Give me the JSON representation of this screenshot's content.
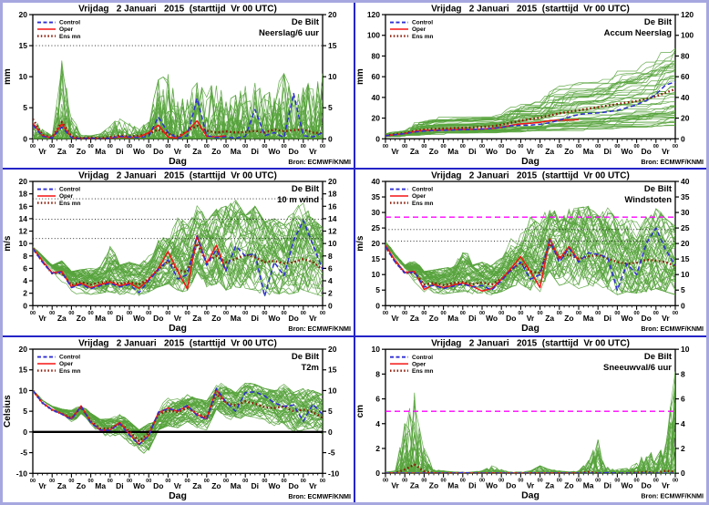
{
  "shared": {
    "title": "Vrijdag   2 Januari   2015  (starttijd  Vr 00 UTC)",
    "station": "De Bilt",
    "xlabel": "Dag",
    "bron_label": "Bron: ECMWF/KNMI",
    "bron_color": "#1212cc",
    "hour_label": "00",
    "day_labels": [
      "Vr",
      "Za",
      "Zo",
      "Ma",
      "Di",
      "Wo",
      "Do",
      "Vr",
      "Za",
      "Zo",
      "Ma",
      "Di",
      "Wo",
      "Do",
      "Vr"
    ],
    "x_days": 15,
    "step_days": 0.5,
    "legend": [
      {
        "label": "Control",
        "key": "control",
        "style": "dashed",
        "color": "#2e2ed2"
      },
      {
        "label": "Oper",
        "key": "oper",
        "style": "solid",
        "color": "#f51414"
      },
      {
        "label": "Ens mn",
        "key": "ens_mean",
        "style": "dotted",
        "color": "#8b1a07"
      }
    ],
    "colors": {
      "control": "#2e2ed2",
      "oper": "#f51414",
      "ens_mean": "#8b1a07",
      "ensemble": "#57a33c",
      "ref_dotted": "#1a1a1a",
      "ref_magenta": "#ff00ff",
      "zero_line": "#000000",
      "frame": "#000000"
    }
  },
  "chart_data": [
    {
      "type": "line",
      "variable": "Neerslag/6 uur",
      "ylabel": "mm",
      "ylim": [
        0,
        20
      ],
      "ytick_step": 5,
      "ref_lines": [
        {
          "y": 15,
          "kind": "dotted"
        }
      ],
      "ensemble": {
        "count": 50,
        "mode": "spike",
        "seed": 11
      },
      "series": {
        "control": [
          2.2,
          0.4,
          0.1,
          1.9,
          0.2,
          0.0,
          0.1,
          0.0,
          0.1,
          0.4,
          0.3,
          0.2,
          0.4,
          3.5,
          1.0,
          0.1,
          0.5,
          6.5,
          0.5,
          0.2,
          0.3,
          0.1,
          0.4,
          4.7,
          0.5,
          1.0,
          0.2,
          7.3,
          0.5,
          0.3,
          1.0
        ],
        "oper": [
          2.5,
          0.5,
          0.1,
          2.4,
          0.2,
          0.0,
          0.1,
          0.0,
          0.1,
          0.3,
          0.2,
          0.3,
          1.0,
          2.2,
          0.3,
          0.1,
          1.2,
          2.9,
          0.4,
          0.3,
          0.5
        ],
        "ens_mean": [
          3.2,
          0.6,
          0.2,
          2.7,
          0.4,
          0.1,
          0.2,
          0.1,
          0.3,
          0.5,
          0.4,
          0.5,
          0.8,
          1.5,
          0.8,
          0.4,
          1.2,
          2.1,
          1.3,
          1.0,
          1.2,
          1.0,
          1.1,
          1.3,
          1.0,
          1.5,
          1.2,
          1.4,
          1.5,
          1.0,
          0.9
        ]
      },
      "envelope": {
        "min": [
          0,
          0,
          0,
          0,
          0,
          0,
          0,
          0,
          0,
          0,
          0,
          0,
          0,
          0,
          0,
          0,
          0,
          0,
          0,
          0,
          0,
          0,
          0,
          0,
          0,
          0,
          0,
          0,
          0,
          0,
          0
        ],
        "max": [
          3.5,
          1.5,
          0.5,
          12.6,
          4.0,
          0.6,
          0.5,
          0.8,
          2.0,
          3.7,
          2.5,
          1.5,
          3.0,
          9.5,
          10.4,
          6.0,
          7.0,
          9.0,
          7.5,
          9.7,
          6.0,
          7.0,
          8.5,
          9.3,
          7.0,
          8.0,
          10.5,
          7.0,
          9.8,
          8.0,
          10.5
        ]
      }
    },
    {
      "type": "line",
      "variable": "Accum Neerslag",
      "ylabel": "mm",
      "ylim": [
        0,
        120
      ],
      "ytick_step": 20,
      "ref_lines": [],
      "ensemble": {
        "count": 50,
        "mode": "accum",
        "seed": 22
      },
      "series": {
        "control": [
          3,
          4,
          5,
          6.5,
          7.5,
          8,
          8.2,
          8.5,
          8.8,
          9,
          9.5,
          10,
          11,
          12.5,
          13,
          13.2,
          14,
          15.5,
          18,
          21,
          23.5,
          24.5,
          25,
          26,
          27.5,
          30,
          33,
          37,
          43,
          52,
          55
        ],
        "oper": [
          3,
          4,
          5,
          7,
          8,
          8.3,
          8.5,
          8.8,
          9,
          9.2,
          9.5,
          10,
          11,
          13,
          14.5,
          15,
          16,
          17.5,
          18,
          18.2,
          18.5
        ],
        "ens_mean": [
          3,
          4.5,
          5.5,
          7.5,
          9,
          9.5,
          10,
          10.3,
          10.6,
          11,
          11.5,
          12,
          13.5,
          15.5,
          17.5,
          19,
          20.5,
          22.5,
          24.5,
          26,
          27.5,
          29,
          30.5,
          32,
          33.5,
          35,
          36.5,
          38.5,
          41,
          44.5,
          48
        ]
      },
      "envelope": {
        "min": [
          2,
          3,
          3.5,
          4,
          4.5,
          5,
          5,
          5,
          5.2,
          5.4,
          5.6,
          5.8,
          6,
          6.5,
          7,
          7.2,
          7.5,
          8,
          8.2,
          8.5,
          8.8,
          9,
          9.5,
          10,
          10.2,
          10.5,
          11,
          11.5,
          12,
          12.5,
          13
        ],
        "max": [
          5,
          7,
          8,
          16,
          20,
          20.5,
          21,
          21,
          21.5,
          22,
          22,
          22.5,
          25,
          32,
          35,
          36,
          38,
          48,
          53,
          54,
          55,
          56,
          58,
          62,
          68,
          70,
          73,
          78,
          84,
          90,
          95
        ]
      }
    },
    {
      "type": "line",
      "variable": "10 m wind",
      "ylabel": "m/s",
      "ylim": [
        0,
        20
      ],
      "ytick_step": 2,
      "ref_lines": [
        {
          "y": 10.8,
          "kind": "dotted"
        },
        {
          "y": 13.9,
          "kind": "dotted"
        },
        {
          "y": 17.2,
          "kind": "dotted"
        }
      ],
      "ensemble": {
        "count": 50,
        "mode": "band",
        "seed": 33
      },
      "series": {
        "control": [
          9.2,
          7.0,
          5.2,
          5.4,
          2.9,
          3.4,
          2.7,
          3.2,
          3.6,
          3.0,
          3.4,
          2.1,
          4.0,
          5.8,
          7.4,
          4.3,
          5.0,
          11.2,
          6.5,
          9.0,
          5.6,
          9.6,
          8.0,
          8.4,
          1.5,
          7.0,
          4.8,
          10.5,
          13.7,
          9.8,
          5.8
        ],
        "oper": [
          9.3,
          7.2,
          5.3,
          5.5,
          3.0,
          3.6,
          2.9,
          3.4,
          3.8,
          3.2,
          3.6,
          2.8,
          4.2,
          6.0,
          8.7,
          5.5,
          2.7,
          11.3,
          6.8,
          9.7,
          5.6
        ],
        "ens_mean": [
          9.2,
          7.1,
          5.2,
          5.3,
          3.3,
          3.8,
          3.4,
          3.7,
          3.9,
          3.5,
          3.8,
          3.4,
          4.3,
          5.8,
          7.2,
          5.8,
          5.4,
          10.0,
          7.0,
          8.0,
          7.0,
          7.5,
          8.2,
          7.8,
          7.0,
          7.2,
          6.8,
          7.0,
          7.5,
          7.0,
          5.8
        ]
      },
      "envelope": {
        "min": [
          8.8,
          6.2,
          4.2,
          3.8,
          1.8,
          2.0,
          1.8,
          2.0,
          2.2,
          1.8,
          2.0,
          1.6,
          2.2,
          3.0,
          3.5,
          2.5,
          2.0,
          5.5,
          3.0,
          3.5,
          2.5,
          3.0,
          2.8,
          2.5,
          1.5,
          2.0,
          1.8,
          2.0,
          2.5,
          2.0,
          1.5
        ],
        "max": [
          9.6,
          8.0,
          6.5,
          7.2,
          5.5,
          5.8,
          6.0,
          6.3,
          10.3,
          6.5,
          7.0,
          6.5,
          8.0,
          11.0,
          11.5,
          14.5,
          13.0,
          16.8,
          13.5,
          15.5,
          16.0,
          17.0,
          14.5,
          16.0,
          13.5,
          14.0,
          13.0,
          15.8,
          16.5,
          14.0,
          12.5
        ]
      }
    },
    {
      "type": "line",
      "variable": "Windstoten",
      "ylabel": "m/s",
      "ylim": [
        0,
        40
      ],
      "ytick_step": 5,
      "ref_lines": [
        {
          "y": 20.8,
          "kind": "dotted"
        },
        {
          "y": 24.5,
          "kind": "dotted"
        },
        {
          "y": 28.5,
          "kind": "magenta"
        }
      ],
      "ensemble": {
        "count": 50,
        "mode": "band",
        "seed": 44
      },
      "series": {
        "control": [
          19,
          14,
          10.5,
          10.8,
          6,
          6.5,
          5.5,
          6.2,
          7,
          6,
          6.5,
          5,
          8,
          11.5,
          14,
          8.5,
          10,
          21,
          14,
          18.5,
          14,
          17,
          16.5,
          15.5,
          5,
          13.5,
          10,
          20,
          25,
          18,
          13
        ],
        "oper": [
          19.5,
          14.5,
          10.7,
          11,
          5.2,
          6.8,
          5.8,
          6.6,
          7.3,
          6.2,
          4.7,
          5.5,
          8.5,
          12,
          15.8,
          11,
          5.8,
          21.5,
          15,
          19,
          14.5
        ],
        "ens_mean": [
          19,
          14.2,
          10.5,
          10.6,
          6.8,
          7.3,
          6.6,
          7.2,
          7.6,
          6.9,
          7.4,
          6.8,
          8.6,
          11.5,
          13.8,
          11,
          10.5,
          20,
          15.5,
          16.5,
          15,
          15.8,
          16.3,
          15.2,
          14,
          13.5,
          13.8,
          14.8,
          14.5,
          14,
          12.8
        ]
      },
      "envelope": {
        "min": [
          18,
          12.5,
          8.5,
          7.5,
          3.5,
          4,
          3.8,
          4.2,
          4.5,
          3.8,
          4,
          3.5,
          4.5,
          6,
          7,
          5,
          4.5,
          11,
          6.5,
          7.5,
          5.5,
          6.5,
          6,
          5.5,
          3.5,
          4.5,
          4,
          4.5,
          5.5,
          4.5,
          3.5
        ],
        "max": [
          21,
          16.5,
          13,
          15,
          11,
          11.5,
          12,
          12.5,
          20.5,
          13,
          14,
          13,
          16,
          22,
          23.5,
          28.5,
          26,
          34,
          27,
          31,
          31.5,
          32,
          29,
          31.5,
          27.5,
          28,
          27,
          30,
          32,
          28,
          25.5
        ]
      }
    },
    {
      "type": "line",
      "variable": "T2m",
      "ylabel": "Celsius",
      "ylim": [
        -10,
        20
      ],
      "ytick_step": 5,
      "ref_lines": [
        {
          "y": 0,
          "kind": "zero"
        }
      ],
      "ensemble": {
        "count": 50,
        "mode": "band",
        "seed": 55
      },
      "series": {
        "control": [
          10,
          7,
          5.3,
          4.3,
          3.0,
          6.2,
          2.2,
          0.5,
          0.4,
          2.0,
          -0.8,
          -3.0,
          -1.0,
          4.8,
          5.6,
          5.2,
          6.4,
          4.0,
          3.0,
          10.5,
          7.2,
          5.0,
          9.5,
          9.7,
          8.7,
          7.0,
          6.2,
          6.5,
          2.6,
          6.7,
          4.2
        ],
        "oper": [
          10,
          7,
          5.4,
          4.4,
          3.2,
          6.3,
          2.4,
          0.4,
          0.5,
          2.3,
          -0.5,
          -3.0,
          -0.8,
          4.6,
          5.8,
          5.0,
          6.3,
          4.2,
          3.2,
          10.2,
          7.0
        ],
        "ens_mean": [
          10,
          7,
          5.3,
          4.4,
          3.3,
          6.0,
          2.6,
          0.8,
          0.8,
          2.0,
          0.2,
          -2.2,
          -0.3,
          4.2,
          5.2,
          4.8,
          5.8,
          4.4,
          3.5,
          9.2,
          7.0,
          6.4,
          7.4,
          6.8,
          6.0,
          5.8,
          6.2,
          5.0,
          5.4,
          4.8,
          3.4
        ]
      },
      "envelope": {
        "min": [
          9.5,
          6.3,
          4.5,
          3.2,
          1.8,
          4.5,
          0.8,
          -1.2,
          -1.5,
          -0.5,
          -3.5,
          -5.8,
          -4.5,
          0.5,
          1.5,
          1.0,
          2.5,
          1.0,
          0.5,
          5.5,
          3.5,
          2.5,
          4.0,
          3.5,
          2.5,
          1.5,
          2.0,
          -0.5,
          0.5,
          1.0,
          -0.5
        ],
        "max": [
          10.3,
          7.6,
          6.2,
          5.5,
          5.2,
          6.6,
          4.5,
          3.0,
          3.2,
          4.5,
          2.5,
          0.5,
          2.0,
          7.0,
          8.5,
          8.0,
          9.0,
          8.0,
          7.5,
          12.5,
          11.0,
          9.5,
          12.0,
          11.5,
          10.5,
          10.0,
          11.5,
          9.5,
          10.5,
          10.0,
          9.0
        ]
      }
    },
    {
      "type": "line",
      "variable": "Sneeuwval/6 uur",
      "ylabel": "cm",
      "ylim": [
        0,
        10
      ],
      "ytick_step": 2,
      "ref_lines": [
        {
          "y": 5,
          "kind": "magenta"
        }
      ],
      "ensemble": {
        "count": 50,
        "mode": "spike",
        "seed": 66
      },
      "series": {
        "control": [
          0,
          0,
          0,
          0,
          0,
          0,
          0,
          0,
          0.05,
          0,
          0,
          0,
          0,
          0,
          0,
          0,
          0,
          0,
          0,
          0,
          0,
          0,
          0,
          0.05,
          0,
          0,
          0,
          0,
          0,
          0,
          0
        ],
        "oper": [
          0,
          0,
          0,
          0,
          0,
          0,
          0,
          0,
          0,
          0,
          0,
          0,
          0,
          0,
          0,
          0,
          0,
          0,
          0,
          0,
          0
        ],
        "ens_mean": [
          0,
          0,
          0.3,
          0.7,
          0.15,
          0,
          0,
          0,
          0,
          0,
          0,
          0,
          0,
          0,
          0,
          0,
          0,
          0,
          0,
          0,
          0,
          0.1,
          0,
          0,
          0,
          0,
          0.05,
          0.1,
          0,
          0.2,
          0.1
        ]
      },
      "envelope": {
        "min": [
          0,
          0,
          0,
          0,
          0,
          0,
          0,
          0,
          0,
          0,
          0,
          0,
          0,
          0,
          0,
          0,
          0,
          0,
          0,
          0,
          0,
          0,
          0,
          0,
          0,
          0,
          0,
          0,
          0,
          0,
          0
        ],
        "max": [
          0.1,
          0.2,
          4.0,
          6.5,
          2.0,
          0.3,
          0.2,
          0.1,
          0.1,
          0.1,
          0.2,
          0.6,
          0.3,
          0.1,
          0.1,
          0.2,
          0.6,
          0.3,
          0.2,
          0.1,
          0.2,
          1.0,
          2.7,
          0.5,
          0.3,
          0.4,
          0.8,
          2.1,
          1.2,
          2.5,
          8.2
        ]
      }
    }
  ]
}
